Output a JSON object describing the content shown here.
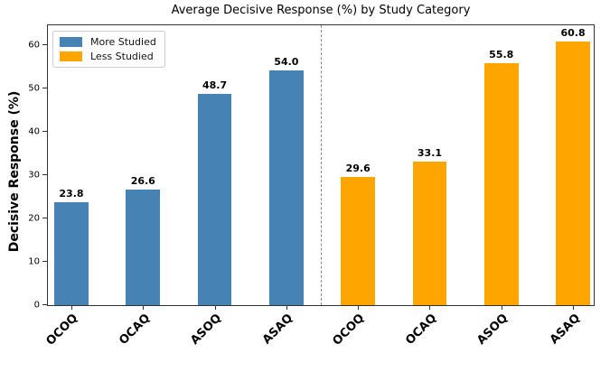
{
  "chart_data": {
    "type": "bar",
    "title": "Average Decisive Response (%) by Study Category",
    "xlabel": "",
    "ylabel": "Decisive Response (%)",
    "categories": [
      "OCOQ",
      "OCAQ",
      "ASOQ",
      "ASAQ"
    ],
    "series": [
      {
        "name": "More Studied",
        "color": "#4682B4",
        "values": [
          23.8,
          26.6,
          48.7,
          54.0
        ]
      },
      {
        "name": "Less Studied",
        "color": "#FFA500",
        "values": [
          29.6,
          33.1,
          55.8,
          60.8
        ]
      }
    ],
    "yticks": [
      0,
      10,
      20,
      30,
      40,
      50,
      60
    ],
    "ylim": [
      0,
      64.5
    ],
    "grid": false,
    "legend": {
      "position": "upper-left"
    },
    "bar_value_labels": true,
    "value_format_decimals": 1,
    "separator": {
      "type": "vertical-dashed-line",
      "after_category_index": 3,
      "color": "#888888"
    },
    "colors": {
      "more_studied": "#4682B4",
      "less_studied": "#FFA500",
      "axis": "#333333",
      "separator": "#888888"
    }
  }
}
